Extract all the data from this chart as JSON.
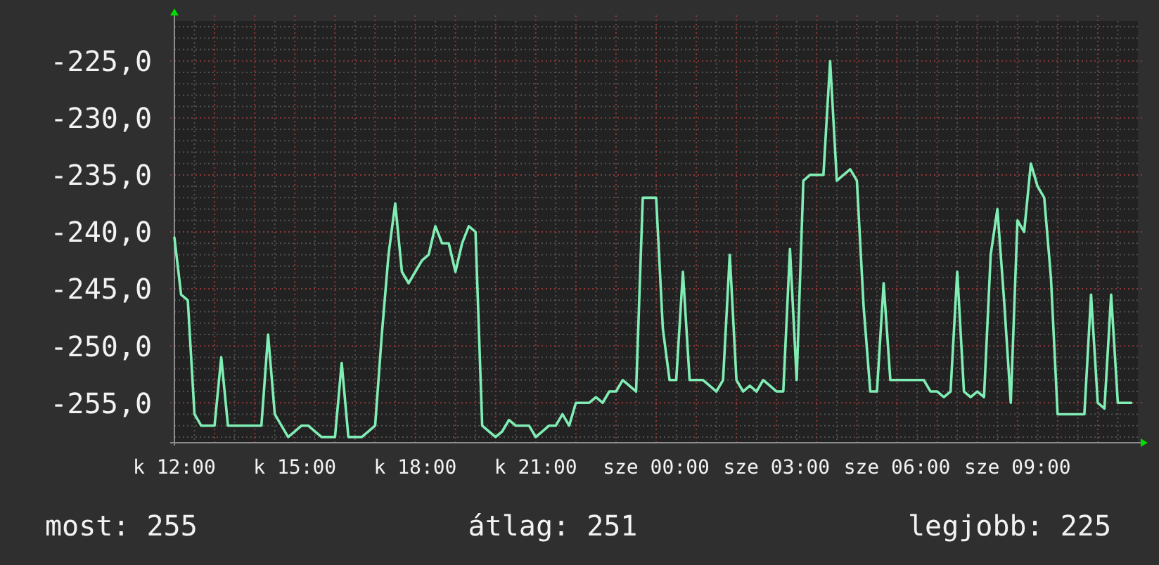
{
  "chart_data": {
    "type": "line",
    "categories": [
      "k 12:00",
      null,
      null,
      null,
      null,
      null,
      null,
      null,
      null,
      null,
      null,
      null,
      null,
      null,
      null,
      null,
      null,
      null,
      "k 15:00",
      null,
      null,
      null,
      null,
      null,
      null,
      null,
      null,
      null,
      null,
      null,
      null,
      null,
      null,
      null,
      null,
      null,
      "k 18:00",
      null,
      null,
      null,
      null,
      null,
      null,
      null,
      null,
      null,
      null,
      null,
      null,
      null,
      null,
      null,
      null,
      null,
      "k 21:00",
      null,
      null,
      null,
      null,
      null,
      null,
      null,
      null,
      null,
      null,
      null,
      null,
      null,
      null,
      null,
      null,
      null,
      "sze 00:00",
      null,
      null,
      null,
      null,
      null,
      null,
      null,
      null,
      null,
      null,
      null,
      null,
      null,
      null,
      null,
      null,
      null,
      "sze 03:00",
      null,
      null,
      null,
      null,
      null,
      null,
      null,
      null,
      null,
      null,
      null,
      null,
      null,
      null,
      null,
      null,
      null,
      "sze 06:00",
      null,
      null,
      null,
      null,
      null,
      null,
      null,
      null,
      null,
      null,
      null,
      null,
      null,
      null,
      null,
      null,
      null,
      "sze 09:00",
      null,
      null,
      null,
      null,
      null,
      null,
      null,
      null,
      null,
      null,
      null,
      null,
      null,
      null,
      null,
      null,
      null
    ],
    "values": [
      -240.5,
      -245.5,
      -246,
      -256,
      -257,
      -257,
      -257,
      -251,
      -257,
      -257,
      -257,
      -257,
      -257,
      -257,
      -249,
      -256,
      -257,
      -258,
      -257.5,
      -257,
      -257,
      -257.5,
      -258,
      -258,
      -258,
      -251.5,
      -258,
      -258,
      -258,
      -257.5,
      -257,
      -249,
      -242,
      -237.5,
      -243.5,
      -244.5,
      -243.5,
      -242.5,
      -242,
      -239.5,
      -241,
      -241,
      -243.5,
      -241,
      -239.5,
      -240,
      -257,
      -257.5,
      -258,
      -257.5,
      -256.5,
      -257,
      -257,
      -257,
      -258,
      -257.5,
      -257,
      -257,
      -256,
      -257,
      -255,
      -255,
      -255,
      -254.5,
      -255,
      -254,
      -254,
      -253,
      -253.5,
      -254,
      -237,
      -237,
      -237,
      -248.5,
      -253,
      -253,
      -243.5,
      -253,
      -253,
      -253,
      -253.5,
      -254,
      -253,
      -242,
      -253,
      -254,
      -253.5,
      -254,
      -253,
      -253.5,
      -254,
      -254,
      -241.5,
      -253,
      -235.5,
      -235,
      -235,
      -235,
      -225,
      -235.5,
      -235,
      -234.5,
      -235.5,
      -246.5,
      -254,
      -254,
      -244.5,
      -253,
      -253,
      -253,
      -253,
      -253,
      -253,
      -254,
      -254,
      -254.5,
      -254,
      -243.5,
      -254,
      -254.5,
      -254,
      -254.5,
      -242,
      -238,
      -246,
      -255,
      -239,
      -240,
      -234,
      -236,
      -237,
      -244,
      -256,
      -256,
      -256,
      -256,
      -256,
      -245.5,
      -255,
      -255.5,
      -245.5,
      -255,
      -255,
      -255
    ],
    "color": "#80eeb4",
    "ylim": [
      -258.5,
      -221.5
    ],
    "yticks": [
      {
        "value": -225,
        "label": "-225,0"
      },
      {
        "value": -230,
        "label": "-230,0"
      },
      {
        "value": -235,
        "label": "-235,0"
      },
      {
        "value": -240,
        "label": "-240,0"
      },
      {
        "value": -245,
        "label": "-245,0"
      },
      {
        "value": -250,
        "label": "-250,0"
      },
      {
        "value": -255,
        "label": "-255,0"
      }
    ],
    "grid": true,
    "annotations": [
      "most: 255",
      "átlag: 251",
      "legjobb: 225"
    ]
  }
}
